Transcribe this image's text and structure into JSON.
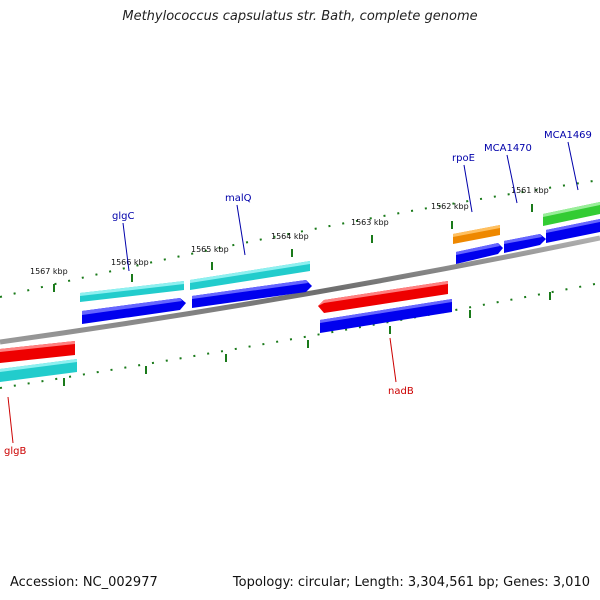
{
  "title": "Methylococcus capsulatus str. Bath, complete genome",
  "footer": {
    "accession": "Accession: NC_002977",
    "summary": "Topology: circular; Length: 3,304,561 bp; Genes: 3,010"
  },
  "kbp_labels": [
    "1567 kbp",
    "1566 kbp",
    "1565 kbp",
    "1564 kbp",
    "1563 kbp",
    "1562 kbp",
    "1561 kbp"
  ],
  "gene_labels": {
    "glgC": "glgC",
    "malQ": "malQ",
    "rpoE": "rpoE",
    "MCA1470": "MCA1470",
    "MCA1469": "MCA1469",
    "nadB": "nadB",
    "glgB": "glgB"
  },
  "colors": {
    "backbone": "#808080",
    "tick": "#1a7a1a",
    "label_forward": "#0000aa",
    "label_reverse": "#cc0000",
    "cds_blue": "#0000ee",
    "gene_cyan": "#22cccc",
    "gene_red": "#ee0000",
    "gene_orange": "#ee8800",
    "gene_green": "#33cc33"
  }
}
